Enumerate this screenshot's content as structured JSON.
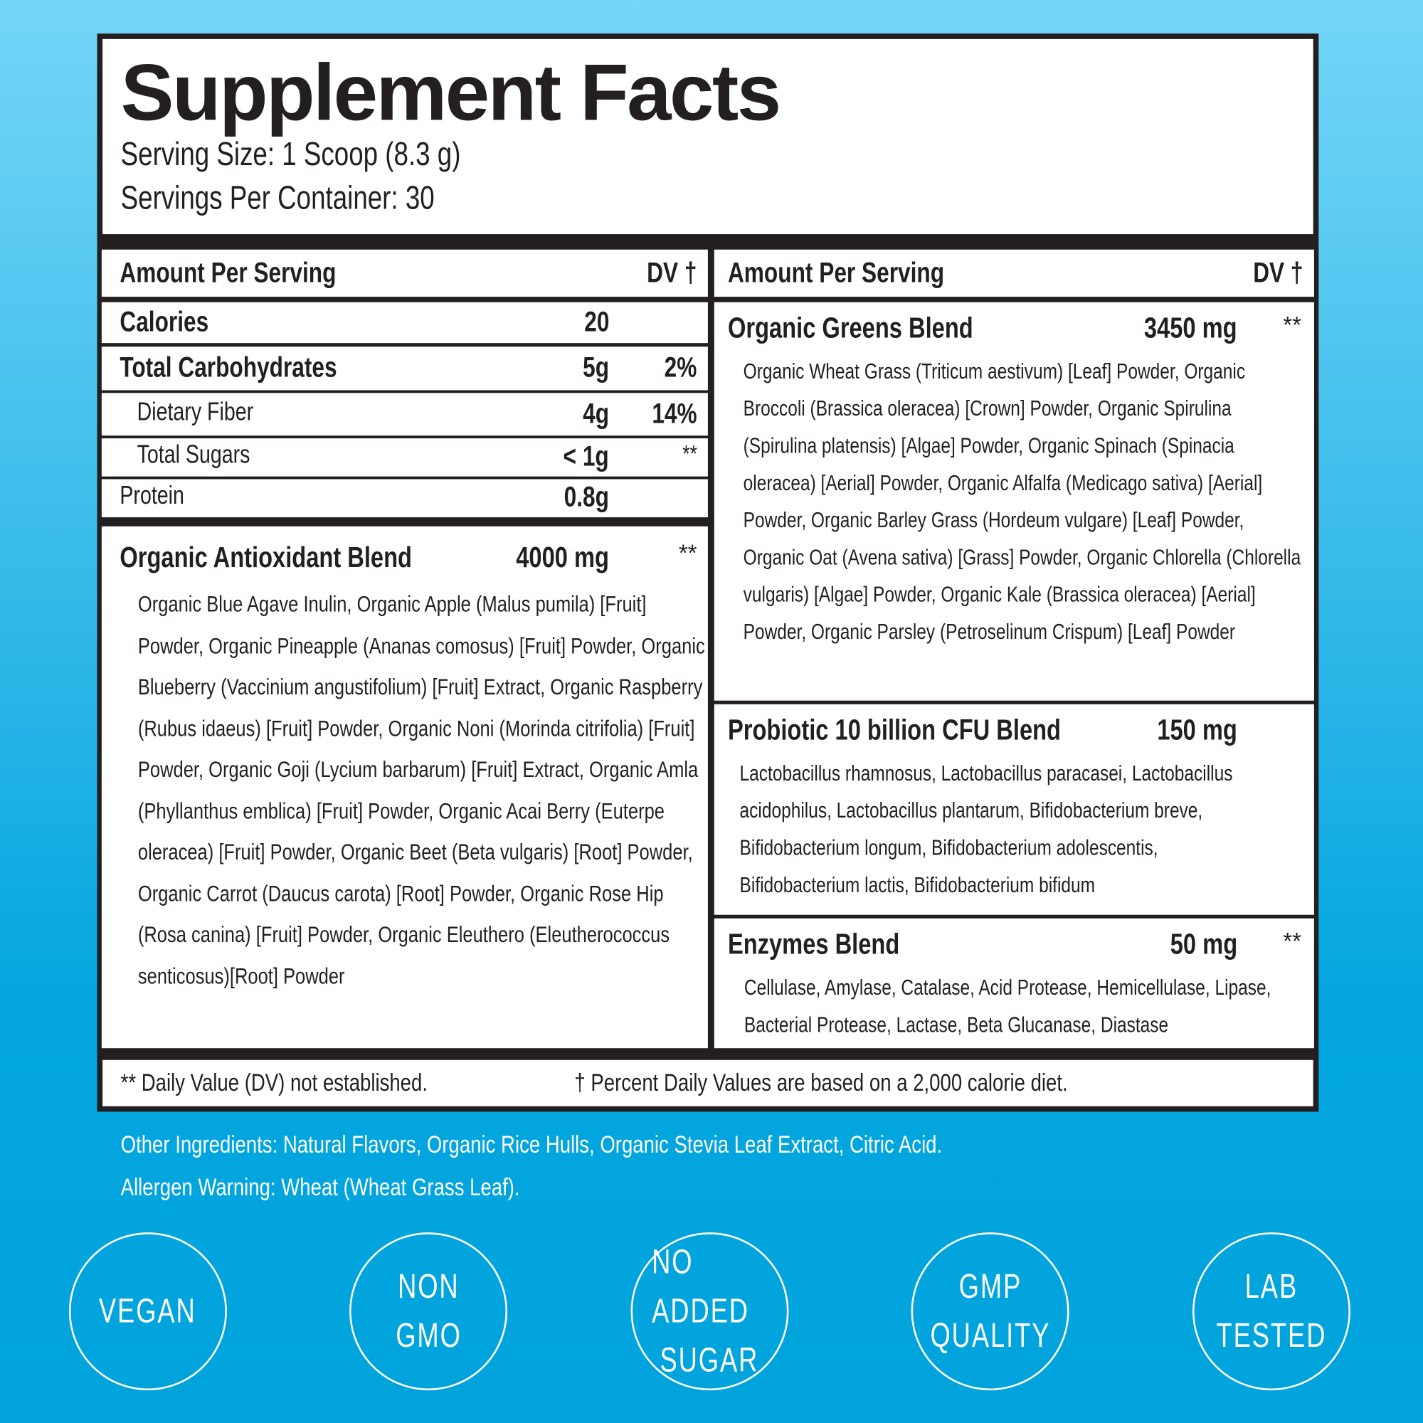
{
  "title": "Supplement Facts",
  "serving_size": "Serving Size: 1 Scoop (8.3 g)",
  "servings_per_container": "Servings Per Container: 30",
  "left": {
    "header": "Amount Per Serving",
    "dv_header": "DV †",
    "rows": [
      {
        "label": "Calories",
        "amount": "20",
        "dv": ""
      },
      {
        "label": "Total Carbohydrates",
        "amount": "5g",
        "dv": "2%"
      },
      {
        "label": "Dietary Fiber",
        "amount": "4g",
        "dv": "14%"
      },
      {
        "label": "Total Sugars",
        "amount": "< 1g",
        "dv": "**"
      },
      {
        "label": "Protein",
        "amount": "0.8g",
        "dv": ""
      }
    ],
    "blend": {
      "name": "Organic Antioxidant Blend",
      "amount": "4000 mg",
      "dv": "**",
      "ingredients": "Organic Blue Agave Inulin, Organic Apple (Malus pumila) [Fruit] Powder, Organic Pineapple (Ananas comosus) [Fruit] Powder, Organic Blueberry (Vaccinium angustifolium) [Fruit] Extract, Organic Raspberry (Rubus idaeus) [Fruit] Powder, Organic Noni (Morinda citrifolia) [Fruit] Powder, Organic Goji (Lycium barbarum) [Fruit] Extract, Organic Amla (Phyllanthus emblica) [Fruit] Powder, Organic Acai Berry (Euterpe oleracea) [Fruit] Powder, Organic Beet (Beta vulgaris) [Root] Powder, Organic Carrot (Daucus carota) [Root] Powder, Organic Rose Hip (Rosa canina) [Fruit] Powder, Organic Eleuthero (Eleutherococcus senticosus)[Root] Powder"
    }
  },
  "right": {
    "header": "Amount Per Serving",
    "dv_header": "DV †",
    "blends": [
      {
        "name": "Organic Greens Blend",
        "amount": "3450 mg",
        "dv": "**",
        "ingredients": "Organic Wheat Grass (Triticum aestivum) [Leaf] Powder, Organic Broccoli (Brassica oleracea) [Crown] Powder, Organic Spirulina (Spirulina platensis) [Algae] Powder, Organic Spinach (Spinacia oleracea) [Aerial] Powder, Organic Alfalfa (Medicago sativa) [Aerial] Powder, Organic Barley Grass (Hordeum vulgare) [Leaf] Powder, Organic Oat (Avena sativa) [Grass] Powder, Organic Chlorella (Chlorella vulgaris) [Algae] Powder, Organic Kale (Brassica oleracea) [Aerial] Powder, Organic Parsley (Petroselinum Crispum) [Leaf] Powder"
      },
      {
        "name": "Probiotic 10 billion CFU Blend",
        "amount": "150 mg",
        "dv": "",
        "ingredients": "Lactobacillus rhamnosus, Lactobacillus paracasei, Lactobacillus acidophilus, Lactobacillus plantarum, Bifidobacterium breve, Bifidobacterium longum, Bifidobacterium adolescentis, Bifidobacterium lactis, Bifidobacterium bifidum"
      },
      {
        "name": "Enzymes Blend",
        "amount": "50 mg",
        "dv": "**",
        "ingredients": "Cellulase, Amylase, Catalase, Acid Protease, Hemicellulase, Lipase, Bacterial Protease, Lactase, Beta Glucanase, Diastase"
      }
    ]
  },
  "footnotes": {
    "dv_not_established": "** Daily Value (DV) not established.",
    "percent_dv": "† Percent Daily Values are based on a 2,000 calorie diet."
  },
  "other_ingredients": "Other Ingredients: Natural Flavors, Organic Rice Hulls, Organic Stevia Leaf Extract, Citric Acid.",
  "allergen_warning": "Allergen Warning: Wheat (Wheat Grass Leaf).",
  "badges": [
    [
      "VEGAN"
    ],
    [
      "NON",
      "GMO"
    ],
    [
      "NO ADDED",
      "SUGAR"
    ],
    [
      "GMP",
      "QUALITY"
    ],
    [
      "LAB",
      "TESTED"
    ]
  ],
  "colors": {
    "background_top": "#74d6f8",
    "background_bottom": "#00a3dc",
    "ink": "#231f20"
  }
}
